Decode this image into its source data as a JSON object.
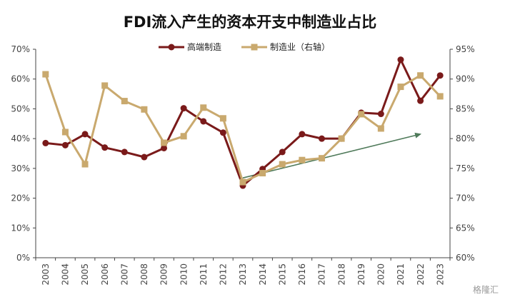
{
  "chart_data": {
    "type": "line",
    "title": "FDI流入产生的资本开支中制造业占比",
    "categories": [
      "2003",
      "2004",
      "2005",
      "2006",
      "2007",
      "2008",
      "2009",
      "2010",
      "2011",
      "2012",
      "2013",
      "2014",
      "2015",
      "2016",
      "2017",
      "2018",
      "2019",
      "2020",
      "2021",
      "2022",
      "2023"
    ],
    "series": [
      {
        "name": "高端制造",
        "axis": "left",
        "color": "#7a1a1a",
        "marker": "circle",
        "values": [
          38.5,
          37.8,
          41.5,
          37,
          35.5,
          33.8,
          36.8,
          50.2,
          45.8,
          42,
          24.2,
          29.8,
          35.5,
          41.5,
          40,
          40,
          48.7,
          48.3,
          66.5,
          52.7,
          61.2
        ]
      },
      {
        "name": "制造业（右轴）",
        "axis": "right",
        "color": "#c9a96e",
        "marker": "square",
        "values": [
          90.8,
          81.1,
          75.7,
          88.9,
          86.3,
          84.9,
          79.3,
          80.4,
          85.2,
          83.4,
          72.7,
          74.2,
          75.7,
          76.4,
          76.7,
          80,
          84.1,
          81.7,
          88.7,
          90.6,
          87.1
        ]
      }
    ],
    "y_left": {
      "min": 0,
      "max": 70,
      "step": 10,
      "suffix": "%"
    },
    "y_right": {
      "min": 60,
      "max": 95,
      "step": 5,
      "suffix": "%"
    },
    "grid": false,
    "legend": "top-center",
    "annotation": {
      "type": "trend-arrow",
      "color": "#4f7a5a",
      "from": {
        "x": "2013",
        "y": 26.8
      },
      "to": {
        "x": "2022",
        "y": 41.5
      }
    }
  },
  "watermark": "格隆汇",
  "colors": {
    "axis": "#444444"
  }
}
